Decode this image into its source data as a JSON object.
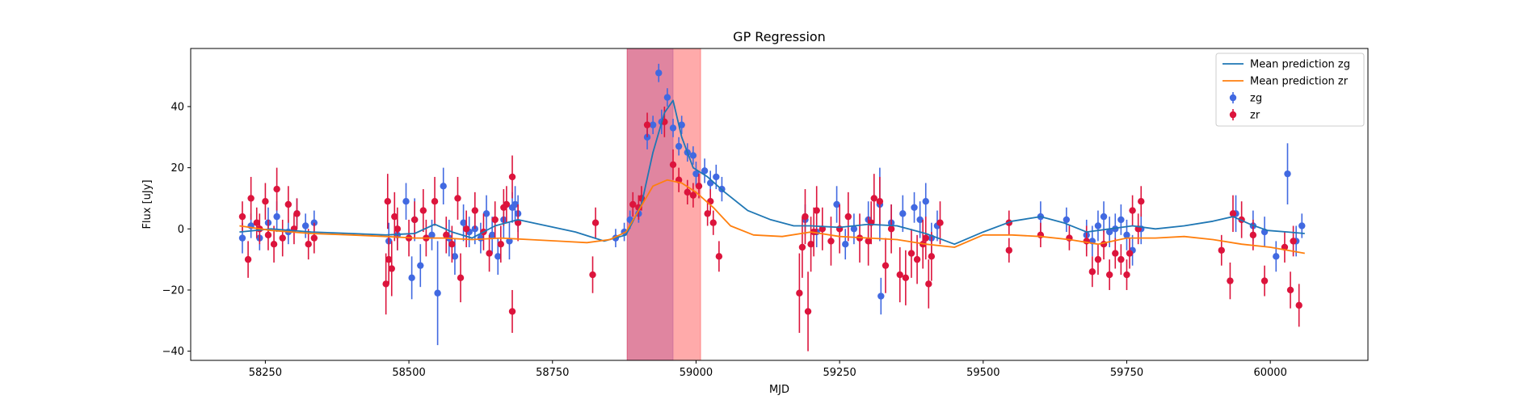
{
  "chart_data": {
    "type": "scatter",
    "title": "GP Regression",
    "xlabel": "MJD",
    "ylabel": "Flux [uJy]",
    "xlim": [
      58120,
      60170
    ],
    "ylim": [
      -43,
      59
    ],
    "xticks": [
      58250,
      58500,
      58750,
      59000,
      59250,
      59500,
      59750,
      60000
    ],
    "yticks": [
      -40,
      -20,
      0,
      20,
      40
    ],
    "legend_position": "upper right",
    "shaded_regions": [
      {
        "x": [
          58880,
          58960
        ],
        "color": "#6b4fd0",
        "alpha": 0.35
      },
      {
        "x": [
          58880,
          59008
        ],
        "color": "#ff2a2a",
        "alpha": 0.4
      }
    ],
    "series": [
      {
        "name": "Mean prediction zg",
        "kind": "line",
        "color": "#1f77b4",
        "x": [
          58205,
          58260,
          58330,
          58400,
          58460,
          58510,
          58545,
          58575,
          58610,
          58650,
          58690,
          58740,
          58790,
          58840,
          58878,
          58905,
          58925,
          58945,
          58960,
          58975,
          58995,
          59020,
          59050,
          59090,
          59130,
          59170,
          59200,
          59250,
          59300,
          59350,
          59400,
          59450,
          59500,
          59550,
          59600,
          59640,
          59680,
          59720,
          59760,
          59800,
          59850,
          59900,
          59935,
          59965,
          59995,
          60030,
          60060
        ],
        "y": [
          -1,
          0,
          -1,
          -1.5,
          -2,
          -1.5,
          1.5,
          -1,
          -3,
          1,
          3,
          1,
          -1,
          -4,
          -2,
          8,
          25,
          38,
          42,
          30,
          20,
          17,
          12,
          6,
          3,
          1,
          1,
          0.5,
          1.5,
          1,
          -1.5,
          -5,
          -1,
          2.5,
          4,
          2,
          -1,
          0,
          1,
          0,
          1,
          2.5,
          4,
          1.5,
          -0.5,
          -1,
          -1.5
        ]
      },
      {
        "name": "Mean prediction zr",
        "kind": "line",
        "color": "#ff7f0e",
        "x": [
          58205,
          58260,
          58330,
          58400,
          58460,
          58510,
          58560,
          58610,
          58660,
          58710,
          58760,
          58810,
          58850,
          58878,
          58900,
          58925,
          58950,
          58975,
          59000,
          59030,
          59060,
          59100,
          59150,
          59200,
          59250,
          59300,
          59350,
          59400,
          59450,
          59500,
          59550,
          59600,
          59650,
          59700,
          59750,
          59800,
          59850,
          59900,
          59950,
          60000,
          60030,
          60060
        ],
        "y": [
          1,
          -0.5,
          -1.5,
          -2,
          -2.5,
          -3,
          -3,
          -3.5,
          -3,
          -3.5,
          -4,
          -4.5,
          -3.5,
          -1,
          6,
          14,
          16,
          15,
          12,
          7,
          1,
          -2,
          -2.5,
          -1,
          -2.5,
          -3,
          -3.5,
          -5,
          -6,
          -2,
          -2,
          -2.5,
          -3.5,
          -5,
          -3,
          -3,
          -2.5,
          -3.5,
          -5,
          -6,
          -7,
          -8
        ]
      },
      {
        "name": "zg",
        "kind": "errorbar",
        "color": "#4169e1",
        "points": [
          [
            58210,
            -3,
            5
          ],
          [
            58225,
            1,
            4
          ],
          [
            58240,
            -3,
            4
          ],
          [
            58255,
            2,
            5
          ],
          [
            58270,
            4,
            5
          ],
          [
            58290,
            -1,
            4
          ],
          [
            58305,
            5,
            5
          ],
          [
            58320,
            1,
            4
          ],
          [
            58335,
            2,
            4
          ],
          [
            58465,
            -4,
            6
          ],
          [
            58480,
            -2,
            5
          ],
          [
            58495,
            9,
            6
          ],
          [
            58505,
            -16,
            7
          ],
          [
            58510,
            3,
            7
          ],
          [
            58520,
            -12,
            7
          ],
          [
            58540,
            -2,
            5
          ],
          [
            58550,
            -21,
            17
          ],
          [
            58560,
            14,
            6
          ],
          [
            58570,
            -3,
            6
          ],
          [
            58580,
            -9,
            6
          ],
          [
            58595,
            2,
            6
          ],
          [
            58605,
            -1,
            5
          ],
          [
            58615,
            0,
            5
          ],
          [
            58625,
            -3,
            5
          ],
          [
            58635,
            5,
            6
          ],
          [
            58645,
            -2,
            6
          ],
          [
            58655,
            -9,
            6
          ],
          [
            58665,
            3,
            6
          ],
          [
            58675,
            -4,
            6
          ],
          [
            58680,
            7,
            5
          ],
          [
            58685,
            8,
            6
          ],
          [
            58690,
            5,
            6
          ],
          [
            58860,
            -3,
            3
          ],
          [
            58875,
            -1,
            3
          ],
          [
            58885,
            3,
            3
          ],
          [
            58900,
            5,
            3
          ],
          [
            58915,
            30,
            4
          ],
          [
            58925,
            34,
            3
          ],
          [
            58935,
            51,
            3
          ],
          [
            58940,
            35,
            4
          ],
          [
            58950,
            43,
            3
          ],
          [
            58960,
            33,
            3
          ],
          [
            58970,
            27,
            3
          ],
          [
            58975,
            34,
            3
          ],
          [
            58985,
            25,
            3
          ],
          [
            58995,
            24,
            3
          ],
          [
            59000,
            18,
            4
          ],
          [
            59015,
            19,
            4
          ],
          [
            59025,
            15,
            4
          ],
          [
            59035,
            17,
            4
          ],
          [
            59045,
            13,
            4
          ],
          [
            59190,
            3,
            5
          ],
          [
            59210,
            -1,
            5
          ],
          [
            59245,
            8,
            6
          ],
          [
            59260,
            -5,
            5
          ],
          [
            59275,
            0,
            5
          ],
          [
            59300,
            3,
            6
          ],
          [
            59320,
            8,
            12
          ],
          [
            59322,
            -22,
            6
          ],
          [
            59340,
            2,
            6
          ],
          [
            59360,
            5,
            6
          ],
          [
            59380,
            7,
            5
          ],
          [
            59390,
            3,
            6
          ],
          [
            59400,
            9,
            6
          ],
          [
            59410,
            -3,
            5
          ],
          [
            59420,
            1,
            5
          ],
          [
            59600,
            4,
            5
          ],
          [
            59645,
            3,
            4
          ],
          [
            59680,
            -2,
            5
          ],
          [
            59690,
            -4,
            5
          ],
          [
            59700,
            1,
            5
          ],
          [
            59710,
            4,
            5
          ],
          [
            59720,
            -1,
            5
          ],
          [
            59730,
            0,
            5
          ],
          [
            59740,
            3,
            5
          ],
          [
            59750,
            -2,
            5
          ],
          [
            59760,
            -7,
            5
          ],
          [
            59775,
            0,
            5
          ],
          [
            59940,
            5,
            6
          ],
          [
            59970,
            1,
            5
          ],
          [
            59990,
            -1,
            5
          ],
          [
            60010,
            -9,
            5
          ],
          [
            60030,
            18,
            10
          ],
          [
            60045,
            -4,
            5
          ],
          [
            60055,
            1,
            4
          ]
        ]
      },
      {
        "name": "zr",
        "kind": "errorbar",
        "color": "#dc143c",
        "points": [
          [
            58210,
            4,
            5
          ],
          [
            58220,
            -10,
            6
          ],
          [
            58225,
            10,
            7
          ],
          [
            58235,
            2,
            5
          ],
          [
            58240,
            0,
            5
          ],
          [
            58250,
            9,
            6
          ],
          [
            58255,
            -2,
            5
          ],
          [
            58265,
            -5,
            6
          ],
          [
            58270,
            13,
            7
          ],
          [
            58280,
            -3,
            6
          ],
          [
            58290,
            8,
            6
          ],
          [
            58300,
            0,
            5
          ],
          [
            58305,
            5,
            5
          ],
          [
            58325,
            -5,
            5
          ],
          [
            58335,
            -3,
            5
          ],
          [
            58460,
            -18,
            10
          ],
          [
            58463,
            9,
            9
          ],
          [
            58465,
            -10,
            8
          ],
          [
            58470,
            -13,
            9
          ],
          [
            58475,
            4,
            8
          ],
          [
            58480,
            0,
            7
          ],
          [
            58500,
            -3,
            6
          ],
          [
            58510,
            3,
            6
          ],
          [
            58525,
            6,
            7
          ],
          [
            58530,
            -3,
            6
          ],
          [
            58545,
            9,
            8
          ],
          [
            58565,
            -2,
            6
          ],
          [
            58575,
            -5,
            6
          ],
          [
            58585,
            10,
            7
          ],
          [
            58590,
            -16,
            8
          ],
          [
            58600,
            0,
            6
          ],
          [
            58615,
            6,
            6
          ],
          [
            58630,
            -1,
            6
          ],
          [
            58640,
            -8,
            6
          ],
          [
            58650,
            3,
            6
          ],
          [
            58660,
            -5,
            6
          ],
          [
            58665,
            7,
            6
          ],
          [
            58670,
            8,
            6
          ],
          [
            58680,
            -27,
            7
          ],
          [
            58680,
            17,
            7
          ],
          [
            58690,
            2,
            6
          ],
          [
            58820,
            -15,
            6
          ],
          [
            58825,
            2,
            5
          ],
          [
            58890,
            8,
            4
          ],
          [
            58900,
            7,
            4
          ],
          [
            58905,
            10,
            4
          ],
          [
            58915,
            34,
            4
          ],
          [
            58945,
            35,
            5
          ],
          [
            58960,
            21,
            5
          ],
          [
            58970,
            16,
            4
          ],
          [
            58985,
            12,
            4
          ],
          [
            58995,
            11,
            4
          ],
          [
            59005,
            14,
            4
          ],
          [
            59020,
            5,
            4
          ],
          [
            59025,
            9,
            4
          ],
          [
            59030,
            2,
            4
          ],
          [
            59040,
            -9,
            5
          ],
          [
            59180,
            -21,
            13
          ],
          [
            59185,
            -6,
            10
          ],
          [
            59190,
            4,
            9
          ],
          [
            59195,
            -27,
            13
          ],
          [
            59200,
            -5,
            9
          ],
          [
            59205,
            -1,
            8
          ],
          [
            59210,
            6,
            8
          ],
          [
            59220,
            0,
            7
          ],
          [
            59235,
            -4,
            8
          ],
          [
            59250,
            0,
            8
          ],
          [
            59265,
            4,
            8
          ],
          [
            59285,
            -3,
            8
          ],
          [
            59300,
            -4,
            8
          ],
          [
            59305,
            2,
            7
          ],
          [
            59310,
            10,
            8
          ],
          [
            59320,
            9,
            8
          ],
          [
            59330,
            -12,
            9
          ],
          [
            59340,
            0,
            8
          ],
          [
            59355,
            -15,
            9
          ],
          [
            59365,
            -16,
            9
          ],
          [
            59375,
            -8,
            8
          ],
          [
            59385,
            -10,
            8
          ],
          [
            59395,
            -5,
            8
          ],
          [
            59400,
            -3,
            7
          ],
          [
            59405,
            -18,
            8
          ],
          [
            59410,
            -9,
            8
          ],
          [
            59425,
            2,
            7
          ],
          [
            59545,
            2,
            4
          ],
          [
            59545,
            -7,
            4
          ],
          [
            59600,
            -2,
            4
          ],
          [
            59650,
            -3,
            4
          ],
          [
            59680,
            -4,
            5
          ],
          [
            59690,
            -14,
            5
          ],
          [
            59700,
            -10,
            5
          ],
          [
            59710,
            -5,
            5
          ],
          [
            59720,
            -15,
            5
          ],
          [
            59730,
            -8,
            5
          ],
          [
            59740,
            -10,
            5
          ],
          [
            59750,
            -15,
            5
          ],
          [
            59755,
            -8,
            5
          ],
          [
            59760,
            6,
            5
          ],
          [
            59770,
            0,
            5
          ],
          [
            59775,
            9,
            5
          ],
          [
            59915,
            -7,
            5
          ],
          [
            59930,
            -17,
            6
          ],
          [
            59935,
            5,
            6
          ],
          [
            59950,
            3,
            6
          ],
          [
            59970,
            -2,
            5
          ],
          [
            59990,
            -17,
            5
          ],
          [
            60025,
            -6,
            5
          ],
          [
            60035,
            -20,
            6
          ],
          [
            60040,
            -4,
            5
          ],
          [
            60050,
            -25,
            7
          ]
        ]
      }
    ]
  }
}
